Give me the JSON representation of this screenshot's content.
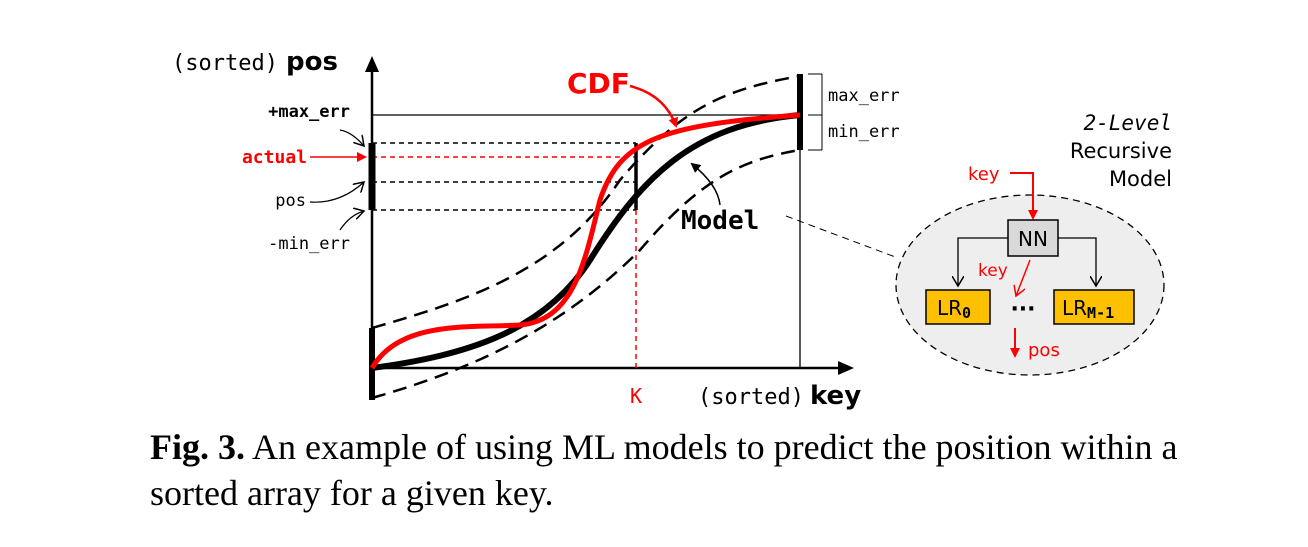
{
  "axes": {
    "y_label_prefix": "(sorted)",
    "y_label_main": "pos",
    "x_label_prefix": "(sorted)",
    "x_label_main": "key"
  },
  "labels": {
    "plus_max_err": "+max_err",
    "actual": "actual",
    "pos": "pos",
    "minus_min_err": "-min_err",
    "cdf": "CDF",
    "model": "Model",
    "max_err": "max_err",
    "min_err": "min_err",
    "k": "K"
  },
  "rmi": {
    "title_italic": "2-Level",
    "title_line2": "Recursive",
    "title_line3": "Model",
    "key_in": "key",
    "nn": "NN",
    "key_mid": "key",
    "lr0": "LR",
    "lr0_sub": "0",
    "dots": "···",
    "lrm": "LR",
    "lrm_sub": "M-1",
    "pos_out": "pos"
  },
  "caption": {
    "label": "Fig. 3.",
    "text": "An example of using ML models to predict the position within a sorted array for a given key."
  },
  "colors": {
    "red": "#ff0000",
    "black": "#000000",
    "box_yellow": "#ffc000",
    "nn_gray": "#d9d9d9",
    "ellipse_fill": "#eeeeee"
  }
}
